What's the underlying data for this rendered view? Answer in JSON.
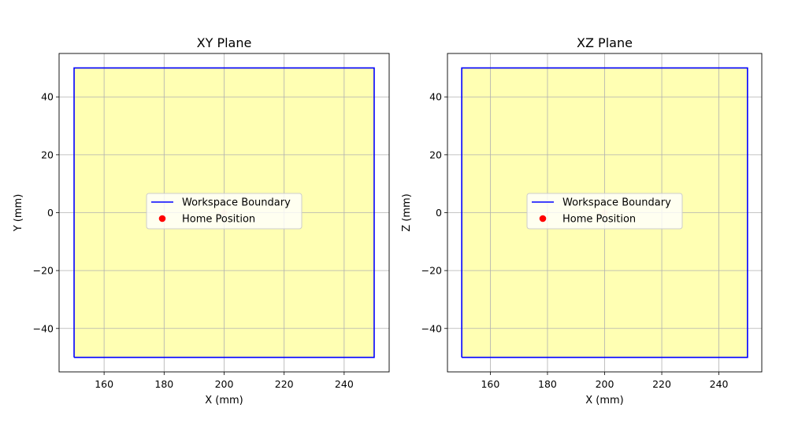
{
  "chart_data": [
    {
      "type": "line",
      "title": "XY Plane",
      "xlabel": "X (mm)",
      "ylabel": "Y (mm)",
      "xlim": [
        145,
        255
      ],
      "ylim": [
        -55,
        55
      ],
      "xticks": [
        160,
        180,
        200,
        220,
        240
      ],
      "yticks": [
        -40,
        -20,
        0,
        20,
        40
      ],
      "xtick_labels": [
        "160",
        "180",
        "200",
        "220",
        "240"
      ],
      "ytick_labels": [
        "−40",
        "−20",
        "0",
        "20",
        "40"
      ],
      "grid": true,
      "legend_position": "center",
      "fill_color": "#ffffb3",
      "series": [
        {
          "name": "Workspace Boundary",
          "kind": "line",
          "color": "#0000ff",
          "points": [
            [
              150,
              -50
            ],
            [
              250,
              -50
            ],
            [
              250,
              50
            ],
            [
              150,
              50
            ],
            [
              150,
              -50
            ]
          ]
        },
        {
          "name": "Home Position",
          "kind": "scatter",
          "color": "#ff0000",
          "points": [
            [
              200,
              0
            ]
          ]
        }
      ]
    },
    {
      "type": "line",
      "title": "XZ Plane",
      "xlabel": "X (mm)",
      "ylabel": "Z (mm)",
      "xlim": [
        145,
        255
      ],
      "ylim": [
        -55,
        55
      ],
      "xticks": [
        160,
        180,
        200,
        220,
        240
      ],
      "yticks": [
        -40,
        -20,
        0,
        20,
        40
      ],
      "xtick_labels": [
        "160",
        "180",
        "200",
        "220",
        "240"
      ],
      "ytick_labels": [
        "−40",
        "−20",
        "0",
        "20",
        "40"
      ],
      "grid": true,
      "legend_position": "center",
      "fill_color": "#ffffb3",
      "series": [
        {
          "name": "Workspace Boundary",
          "kind": "line",
          "color": "#0000ff",
          "points": [
            [
              150,
              -50
            ],
            [
              250,
              -50
            ],
            [
              250,
              50
            ],
            [
              150,
              50
            ],
            [
              150,
              -50
            ]
          ]
        },
        {
          "name": "Home Position",
          "kind": "scatter",
          "color": "#ff0000",
          "points": [
            [
              200,
              0
            ]
          ]
        }
      ]
    }
  ]
}
